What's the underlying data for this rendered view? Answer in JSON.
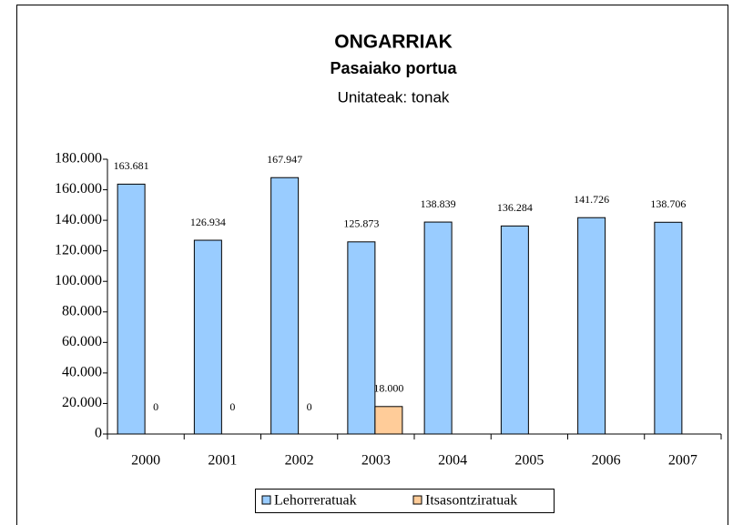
{
  "chart_data": {
    "type": "bar",
    "title": "ONGARRIAK",
    "subtitle": "Pasaiako portua",
    "units": "Unitateak: tonak",
    "categories": [
      "2000",
      "2001",
      "2002",
      "2003",
      "2004",
      "2005",
      "2006",
      "2007"
    ],
    "series": [
      {
        "name": "Lehorreratuak",
        "color": "#99ccff",
        "values": [
          163681,
          126934,
          167947,
          125873,
          138839,
          136284,
          141726,
          138706
        ],
        "value_labels": [
          "163.681",
          "126.934",
          "167.947",
          "125.873",
          "138.839",
          "136.284",
          "141.726",
          "138.706"
        ]
      },
      {
        "name": "Itsasontziratuak",
        "color": "#ffcc99",
        "values": [
          0,
          0,
          0,
          18000,
          null,
          null,
          null,
          null
        ],
        "value_labels": [
          "0",
          "0",
          "0",
          "18.000",
          null,
          null,
          null,
          null
        ]
      }
    ],
    "ylim": [
      0,
      180000
    ],
    "yticks": [
      0,
      {
        "value": 20000,
        "label": "20.000"
      },
      {
        "value": 40000,
        "label": "40.000"
      },
      {
        "value": 60000,
        "label": "60.000"
      },
      {
        "value": 80000,
        "label": "80.000"
      },
      {
        "value": 100000,
        "label": "100.000"
      },
      {
        "value": 120000,
        "label": "120.000"
      },
      {
        "value": 140000,
        "label": "140.000"
      },
      {
        "value": 160000,
        "label": "160.000"
      },
      {
        "value": 180000,
        "label": "180.000"
      }
    ],
    "grid": false,
    "legend": "bottom"
  }
}
